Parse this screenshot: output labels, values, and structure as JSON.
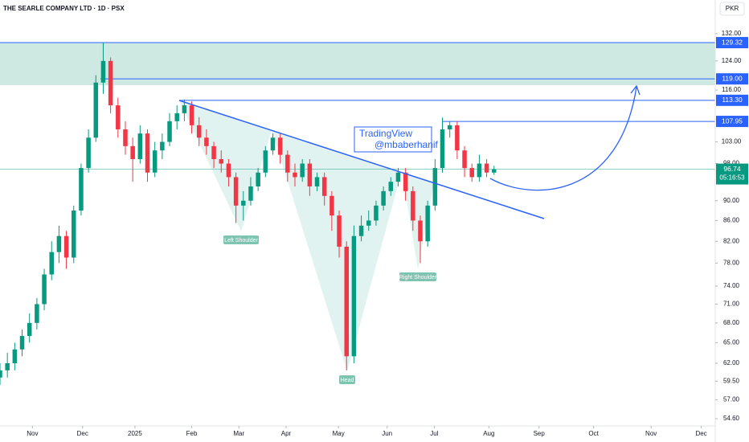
{
  "chart_data": {
    "type": "candlestick",
    "title": "THE SEARLE COMPANY LTD · 1D · PSX",
    "currency": "PKR",
    "log_scale": true,
    "ylim": [
      53.7,
      142.6
    ],
    "yticks": [
      {
        "value": 132,
        "label": "132.00"
      },
      {
        "value": 124,
        "label": "124.00"
      },
      {
        "value": 116,
        "label": "116.00"
      },
      {
        "value": 103,
        "label": "103.00"
      },
      {
        "value": 98,
        "label": "98.00"
      },
      {
        "value": 90,
        "label": "90.00"
      },
      {
        "value": 86,
        "label": "86.00"
      },
      {
        "value": 82,
        "label": "82.00"
      },
      {
        "value": 78,
        "label": "78.00"
      },
      {
        "value": 74,
        "label": "74.00"
      },
      {
        "value": 71,
        "label": "71.00"
      },
      {
        "value": 68,
        "label": "68.00"
      },
      {
        "value": 65,
        "label": "65.00"
      },
      {
        "value": 62,
        "label": "62.00"
      },
      {
        "value": 59.5,
        "label": "59.50"
      },
      {
        "value": 57,
        "label": "57.00"
      },
      {
        "value": 54.6,
        "label": "54.60"
      }
    ],
    "xlim": [
      0,
      97
    ],
    "xticks": [
      {
        "value": 4.4,
        "label": "Nov"
      },
      {
        "value": 11.2,
        "label": "Dec"
      },
      {
        "value": 18.3,
        "label": "2025"
      },
      {
        "value": 26,
        "label": "Feb"
      },
      {
        "value": 32.4,
        "label": "Mar"
      },
      {
        "value": 38.8,
        "label": "Apr"
      },
      {
        "value": 45.9,
        "label": "May"
      },
      {
        "value": 52.5,
        "label": "Jun"
      },
      {
        "value": 58.9,
        "label": "Jul"
      },
      {
        "value": 66.3,
        "label": "Aug"
      },
      {
        "value": 73.1,
        "label": "Sep"
      },
      {
        "value": 80.5,
        "label": "Oct"
      },
      {
        "value": 88.3,
        "label": "Nov"
      },
      {
        "value": 95.1,
        "label": "Dec"
      }
    ],
    "up_color": "#089981",
    "down_color": "#f23645",
    "open": [
      60,
      61,
      62,
      64,
      66,
      68,
      71,
      76,
      80,
      83,
      79,
      88,
      97,
      104,
      118,
      124,
      112,
      106,
      102,
      99,
      105,
      96,
      101,
      103,
      108,
      110,
      112,
      107,
      104,
      102,
      99,
      98,
      95,
      89,
      90,
      93,
      96,
      101,
      104,
      100,
      96,
      95,
      98,
      93,
      95,
      91,
      87,
      81,
      63,
      83,
      85,
      86,
      89,
      92,
      94,
      96,
      92,
      86,
      82,
      89,
      97,
      106,
      107,
      101,
      97,
      95,
      98,
      96
    ],
    "high": [
      62,
      63.5,
      65,
      67,
      69.5,
      72,
      77,
      82,
      85,
      84,
      89,
      98,
      106,
      120,
      129.3,
      125,
      114,
      108,
      104,
      107,
      106,
      103,
      105,
      110,
      112,
      113.5,
      113,
      109,
      106,
      103,
      101,
      99,
      96,
      92,
      95,
      97,
      102,
      105,
      105,
      101,
      98,
      99,
      99,
      96,
      96,
      92,
      88,
      82,
      85,
      87,
      88,
      90,
      93,
      95,
      97,
      97,
      93,
      87,
      90,
      99,
      108.9,
      108,
      108,
      102,
      98,
      100,
      99,
      97.5
    ],
    "low": [
      59,
      60,
      61,
      63,
      65,
      67,
      70,
      75,
      78,
      77,
      78,
      87,
      96,
      103,
      115,
      110,
      104,
      100,
      94,
      98,
      94,
      95,
      99,
      102,
      106,
      108,
      105,
      102,
      100,
      97,
      96,
      93,
      85.5,
      86,
      89,
      92,
      95,
      100,
      98,
      94,
      93,
      94,
      91,
      92,
      89,
      84,
      79,
      61,
      62,
      82,
      84,
      85,
      88,
      91,
      93,
      90,
      84,
      78,
      81,
      88,
      96,
      104,
      99,
      95,
      94,
      94,
      95,
      95.5
    ],
    "close": [
      61,
      62,
      64,
      66,
      68,
      71,
      76,
      80,
      83,
      79,
      88,
      97,
      104,
      118,
      124,
      112,
      106,
      102,
      99,
      105,
      96,
      101,
      103,
      108,
      110,
      112,
      107,
      104,
      102,
      99,
      98,
      95,
      89,
      90,
      93,
      96,
      101,
      104,
      100,
      96,
      95,
      98,
      93,
      95,
      91,
      87,
      81,
      63,
      83,
      85,
      86,
      89,
      92,
      94,
      96,
      92,
      86,
      82,
      89,
      97,
      106,
      107,
      101,
      97,
      95,
      98,
      96,
      96.74
    ],
    "zone": [
      117.3,
      129.32
    ],
    "zone_color": "#cde9e1",
    "levels": [
      {
        "value": 129.32,
        "label": "129.32"
      },
      {
        "value": 119,
        "label": "119.00"
      },
      {
        "value": 113.3,
        "label": "113.30"
      },
      {
        "value": 107.95,
        "label": "107.95"
      }
    ],
    "level_color": "#2962ff",
    "current": 96.74,
    "countdown": "05:16:53",
    "annotations": {
      "watermark": "TradingView",
      "author": "@mbaberhanif",
      "left_shoulder": "Left Shoulder",
      "head": "Head",
      "right_shoulder": "Right Shoulder"
    }
  }
}
